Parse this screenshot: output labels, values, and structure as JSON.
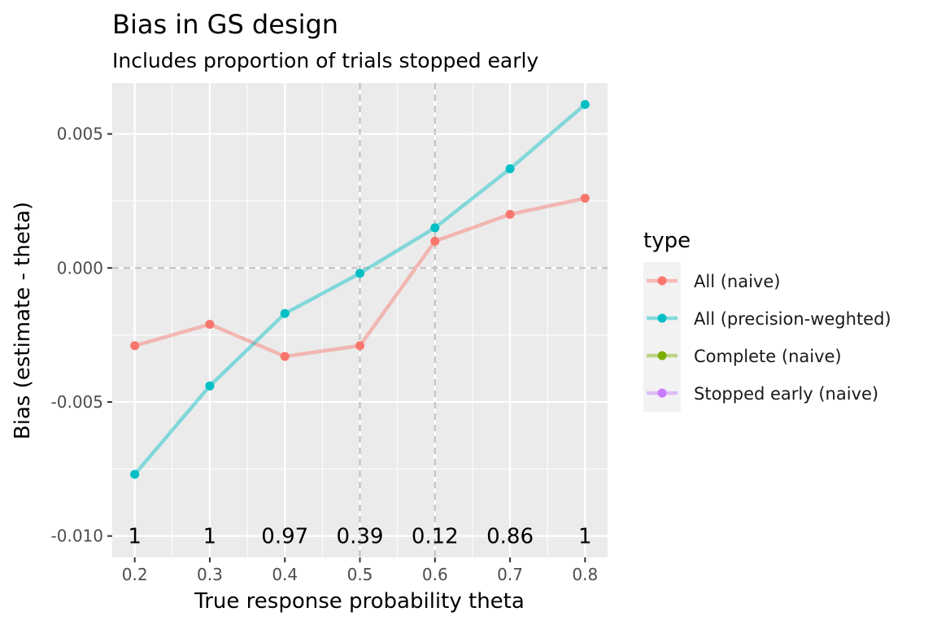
{
  "chart_data": {
    "type": "line",
    "title": "Bias in GS design",
    "subtitle": "Includes proportion of trials stopped early",
    "xlabel": "True response probability theta",
    "ylabel": "Bias (estimate - theta)",
    "xlim": [
      0.17,
      0.83
    ],
    "ylim": [
      -0.0108,
      0.0069
    ],
    "x_ticks": [
      0.2,
      0.3,
      0.4,
      0.5,
      0.6,
      0.7,
      0.8
    ],
    "x_tick_labels": [
      "0.2",
      "0.3",
      "0.4",
      "0.5",
      "0.6",
      "0.7",
      "0.8"
    ],
    "y_ticks": [
      -0.01,
      -0.005,
      0.0,
      0.005
    ],
    "y_tick_labels": [
      "-0.010",
      "-0.005",
      "0.000",
      "0.005"
    ],
    "grid": true,
    "reference_lines": {
      "horizontal": [
        0.0
      ],
      "vertical": [
        0.5,
        0.6
      ]
    },
    "legend": {
      "title": "type",
      "position": "right",
      "entries": [
        {
          "name": "All (naive)",
          "color": "#F8766D"
        },
        {
          "name": "All (precision-weghted)",
          "color": "#00BFC4"
        },
        {
          "name": "Complete (naive)",
          "color": "#7CAE00"
        },
        {
          "name": "Stopped early (naive)",
          "color": "#C77CFF"
        }
      ]
    },
    "series": [
      {
        "name": "All (naive)",
        "color": "#F8766D",
        "x": [
          0.2,
          0.3,
          0.4,
          0.5,
          0.6,
          0.7,
          0.8
        ],
        "y": [
          -0.0029,
          -0.0021,
          -0.0033,
          -0.0029,
          0.001,
          0.002,
          0.0026
        ]
      },
      {
        "name": "All (precision-weghted)",
        "color": "#00BFC4",
        "x": [
          0.2,
          0.3,
          0.4,
          0.5,
          0.6,
          0.7,
          0.8
        ],
        "y": [
          -0.0077,
          -0.0044,
          -0.0017,
          -0.0002,
          0.0015,
          0.0037,
          0.0061
        ]
      }
    ],
    "annotations": {
      "x": [
        0.2,
        0.3,
        0.4,
        0.5,
        0.6,
        0.7,
        0.8
      ],
      "y": -0.01,
      "labels": [
        "1",
        "1",
        "0.97",
        "0.39",
        "0.12",
        "0.86",
        "1"
      ]
    }
  }
}
